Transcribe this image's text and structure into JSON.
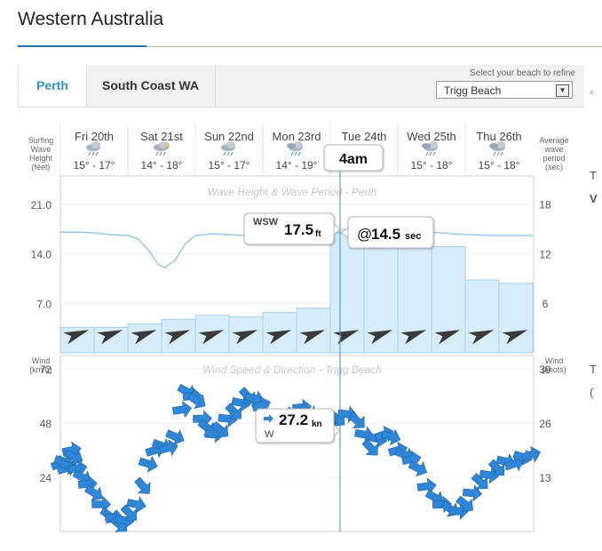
{
  "page": {
    "title": "Western Australia"
  },
  "tabs": [
    {
      "label": "Perth",
      "active": true
    },
    {
      "label": "South Coast WA",
      "active": false
    }
  ],
  "beach_select": {
    "label": "Select your beach to refine",
    "value": "Trigg Beach"
  },
  "axis_headers": {
    "left_top": [
      "Surfing",
      "Wave",
      "Height",
      "(feet)"
    ],
    "right_top": [
      "Average",
      "wave",
      "period",
      "(sec)"
    ],
    "left_bottom": [
      "Wind",
      "(km/h)"
    ],
    "right_bottom": [
      "Wind",
      "(knots)"
    ]
  },
  "days": [
    {
      "label": "Fri 20th",
      "temp": "15° - 17°",
      "icon": "rain-cloud-icon"
    },
    {
      "label": "Sat 21st",
      "temp": "14° - 18°",
      "icon": "sun-cloud-rain-icon"
    },
    {
      "label": "Sun 22nd",
      "temp": "15° - 17°",
      "icon": "rain-cloud-icon"
    },
    {
      "label": "Mon 23rd",
      "temp": "14° - 19°",
      "icon": "storm-cloud-icon"
    },
    {
      "label": "Tue 24th",
      "temp": "",
      "icon": ""
    },
    {
      "label": "Wed 25th",
      "temp": "15° - 18°",
      "icon": "storm-cloud-icon"
    },
    {
      "label": "Thu 26th",
      "temp": "15° - 18°",
      "icon": "storm-cloud-icon"
    }
  ],
  "tooltips": {
    "time": "4am",
    "wave_dir": "WSW",
    "wave_height": "17.5",
    "wave_unit": "ft",
    "period_prefix": "@",
    "period": "14.5",
    "period_unit": "sec",
    "wind_speed": "27.2",
    "wind_unit": "kn",
    "wind_dir": "W"
  },
  "right_fragments": [
    "T",
    "V",
    "T",
    "("
  ],
  "colors": {
    "bar": "#d6ecf8",
    "bar_edge": "#9fd0ec",
    "line": "#94c8e6",
    "wind_arrow": "#2f86d6",
    "cursor": "#3a8cc9",
    "dir_arrow": "#3a3a3a"
  },
  "chart_data": [
    {
      "type": "bar",
      "title": "Wave Height & Wave Period - Perth",
      "ylabel": "Surfing Wave Height (feet)",
      "y2label": "Average wave period (sec)",
      "yticks": [
        7.0,
        14.0,
        21.0
      ],
      "y2ticks": [
        6,
        12,
        18
      ],
      "ylim": [
        0,
        25
      ],
      "y2lim": [
        0,
        21.4
      ],
      "slots": 14,
      "bars_ft": [
        3.6,
        3.6,
        4.1,
        4.7,
        5.3,
        5.1,
        5.7,
        6.3,
        17.5,
        15.0,
        15.0,
        15.0,
        10.3,
        9.8
      ],
      "bar_split": 8,
      "period_sec": [
        [
          0,
          14.6
        ],
        [
          0.6,
          14.6
        ],
        [
          1,
          14.5
        ],
        [
          1.5,
          14.3
        ],
        [
          2,
          14.2
        ],
        [
          2.3,
          13.8
        ],
        [
          2.6,
          12.5
        ],
        [
          2.9,
          10.7
        ],
        [
          3.1,
          10.3
        ],
        [
          3.4,
          11.2
        ],
        [
          3.7,
          13.2
        ],
        [
          4,
          14.2
        ],
        [
          4.5,
          14.4
        ],
        [
          5,
          14.3
        ],
        [
          5.5,
          14.2
        ],
        [
          6,
          14.2
        ],
        [
          6.5,
          14.2
        ],
        [
          7,
          14.2
        ],
        [
          7.5,
          14.3
        ],
        [
          8,
          14.5
        ],
        [
          9,
          14.6
        ],
        [
          10,
          14.7
        ],
        [
          11,
          14.6
        ],
        [
          12,
          14.3
        ],
        [
          13,
          14.2
        ],
        [
          14,
          14.2
        ]
      ],
      "swell_direction_deg": [
        250,
        250,
        250,
        250,
        250,
        250,
        250,
        250,
        250,
        250,
        250,
        250,
        250,
        250
      ]
    },
    {
      "type": "scatter",
      "title": "Wind Speed & Direction - Trigg Beach",
      "ylabel": "Wind (km/h)",
      "y2label": "Wind (knots)",
      "yticks": [
        24,
        48,
        72
      ],
      "y2ticks": [
        13,
        26,
        39
      ],
      "ylim": [
        0,
        78
      ],
      "wind_kmh": [
        [
          0.0,
          30
        ],
        [
          0.1,
          31
        ],
        [
          0.18,
          28
        ],
        [
          0.25,
          29
        ],
        [
          0.33,
          36
        ],
        [
          0.4,
          33
        ],
        [
          0.5,
          28
        ],
        [
          0.65,
          24
        ],
        [
          0.8,
          21
        ],
        [
          1.0,
          17
        ],
        [
          1.2,
          12
        ],
        [
          1.45,
          7
        ],
        [
          1.6,
          6
        ],
        [
          1.75,
          3
        ],
        [
          1.9,
          5
        ],
        [
          2.05,
          8
        ],
        [
          2.25,
          12
        ],
        [
          2.45,
          20
        ],
        [
          2.6,
          30
        ],
        [
          2.8,
          36
        ],
        [
          3.0,
          38
        ],
        [
          3.2,
          37
        ],
        [
          3.4,
          42
        ],
        [
          3.6,
          54
        ],
        [
          3.75,
          62
        ],
        [
          3.9,
          60
        ],
        [
          4.05,
          58
        ],
        [
          4.2,
          50
        ],
        [
          4.35,
          46
        ],
        [
          4.55,
          43
        ],
        [
          4.75,
          45
        ],
        [
          4.95,
          50
        ],
        [
          5.15,
          53
        ],
        [
          5.35,
          57
        ],
        [
          5.55,
          60
        ],
        [
          5.75,
          59
        ],
        [
          5.95,
          56
        ],
        [
          6.15,
          50
        ],
        [
          6.35,
          45
        ],
        [
          6.55,
          45
        ],
        [
          6.75,
          48
        ],
        [
          6.95,
          52
        ],
        [
          7.15,
          55
        ],
        [
          7.35,
          53
        ],
        [
          7.55,
          50
        ],
        [
          7.75,
          48
        ],
        [
          7.95,
          48
        ],
        [
          8.2,
          50
        ],
        [
          8.5,
          52
        ],
        [
          8.8,
          49
        ],
        [
          9.0,
          43
        ],
        [
          9.2,
          37
        ],
        [
          9.4,
          41
        ],
        [
          9.6,
          43
        ],
        [
          9.8,
          42
        ],
        [
          10.0,
          36
        ],
        [
          10.2,
          34
        ],
        [
          10.4,
          32
        ],
        [
          10.6,
          28
        ],
        [
          10.85,
          20
        ],
        [
          11.1,
          15
        ],
        [
          11.3,
          12
        ],
        [
          11.55,
          10
        ],
        [
          11.8,
          9
        ],
        [
          12.0,
          12
        ],
        [
          12.2,
          17
        ],
        [
          12.45,
          22
        ],
        [
          12.7,
          25
        ],
        [
          12.95,
          28
        ],
        [
          13.2,
          31
        ],
        [
          13.45,
          30
        ],
        [
          13.7,
          33
        ],
        [
          13.95,
          34
        ]
      ]
    }
  ]
}
